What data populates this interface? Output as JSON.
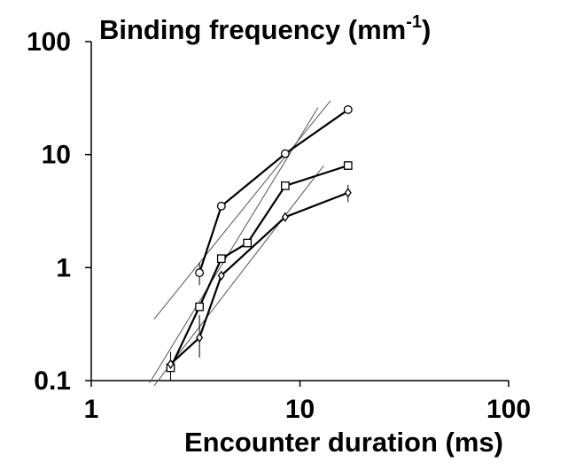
{
  "chart_data": {
    "type": "scatter",
    "title": "Binding frequency (mm",
    "title_superscript": "-1",
    "title_suffix": ")",
    "xlabel": "Encounter duration (ms)",
    "x_scale": "log",
    "y_scale": "log",
    "xlim": [
      1,
      100
    ],
    "ylim": [
      0.1,
      100
    ],
    "x_ticks": [
      {
        "value": 1,
        "label": "1"
      },
      {
        "value": 10,
        "label": "10"
      },
      {
        "value": 100,
        "label": "100"
      }
    ],
    "y_ticks": [
      {
        "value": 0.1,
        "label": "0.1"
      },
      {
        "value": 1,
        "label": "1"
      },
      {
        "value": 10,
        "label": "10"
      },
      {
        "value": 100,
        "label": "100"
      }
    ],
    "grid": false,
    "series": [
      {
        "marker": "circle",
        "points": [
          {
            "x": 3.3,
            "y": 0.9,
            "err_low": 0.7,
            "err_high": 1.1
          },
          {
            "x": 4.2,
            "y": 3.5
          },
          {
            "x": 8.5,
            "y": 10.2
          },
          {
            "x": 17,
            "y": 25
          }
        ]
      },
      {
        "marker": "square",
        "points": [
          {
            "x": 2.4,
            "y": 0.13,
            "err_low": 0.1,
            "err_high": 0.18
          },
          {
            "x": 3.3,
            "y": 0.45
          },
          {
            "x": 4.2,
            "y": 1.2
          },
          {
            "x": 5.6,
            "y": 1.65
          },
          {
            "x": 8.5,
            "y": 5.3
          },
          {
            "x": 17,
            "y": 8
          }
        ]
      },
      {
        "marker": "diamond",
        "points": [
          {
            "x": 2.4,
            "y": 0.14
          },
          {
            "x": 3.3,
            "y": 0.24,
            "err_low": 0.16,
            "err_high": 0.38
          },
          {
            "x": 4.2,
            "y": 0.85
          },
          {
            "x": 8.5,
            "y": 2.8
          },
          {
            "x": 17,
            "y": 4.6,
            "err_low": 3.8,
            "err_high": 5.4
          }
        ]
      }
    ],
    "fit_lines": [
      {
        "x1": 2.0,
        "y1": 0.35,
        "x2": 14,
        "y2": 30
      },
      {
        "x1": 1.9,
        "y1": 0.095,
        "x2": 12.2,
        "y2": 26
      },
      {
        "x1": 2.0,
        "y1": 0.09,
        "x2": 13,
        "y2": 8
      }
    ]
  }
}
